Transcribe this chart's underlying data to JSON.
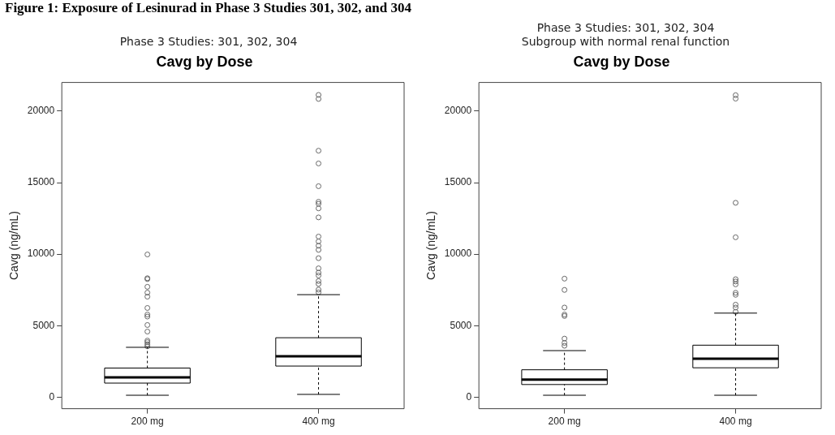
{
  "chart_data": [
    {
      "type": "box",
      "title": "Cavg by Dose",
      "subtitle": "Phase 3 Studies: 301, 302, 304",
      "ylabel": "Cavg (ng/mL)",
      "annotations": [
        "Figure 1: Exposure of Lesinurad in Phase 3 Studies 301, 302, and 304"
      ],
      "categories": [
        "200 mg",
        "400 mg"
      ],
      "color": "#000000",
      "marker": "circle",
      "grid": false,
      "legend": false,
      "ylim": [
        -800,
        22000
      ],
      "yticks": [
        0,
        5000,
        10000,
        15000,
        20000
      ],
      "boxes": [
        {
          "low": 140,
          "q1": 990,
          "median": 1390,
          "q3": 2040,
          "high": 3490,
          "outliers": [
            3560,
            3700,
            3850,
            3960,
            4590,
            5050,
            5640,
            5780,
            6240,
            7030,
            7310,
            7720,
            8260,
            8320,
            9980
          ]
        },
        {
          "low": 200,
          "q1": 2180,
          "median": 2870,
          "q3": 4160,
          "high": 7170,
          "outliers": [
            7330,
            7520,
            7920,
            8120,
            8510,
            8710,
            9010,
            9720,
            10300,
            10590,
            10890,
            11230,
            12570,
            13200,
            13520,
            13660,
            14750,
            16340,
            17230,
            20850,
            21130
          ]
        }
      ]
    },
    {
      "type": "box",
      "title": "Cavg by Dose",
      "subtitle": "Phase 3 Studies: 301, 302, 304\nSubgroup with normal renal function",
      "ylabel": "Cavg (ng/mL)",
      "categories": [
        "200 mg",
        "400 mg"
      ],
      "color": "#000000",
      "marker": "circle",
      "grid": false,
      "legend": false,
      "ylim": [
        -800,
        22000
      ],
      "yticks": [
        0,
        5000,
        10000,
        15000,
        20000
      ],
      "boxes": [
        {
          "low": 140,
          "q1": 890,
          "median": 1230,
          "q3": 1920,
          "high": 3260,
          "outliers": [
            3600,
            3800,
            4100,
            5680,
            5780,
            6270,
            7500,
            8290
          ]
        },
        {
          "low": 140,
          "q1": 2060,
          "median": 2690,
          "q3": 3640,
          "high": 5880,
          "outliers": [
            5970,
            6270,
            6470,
            7160,
            7300,
            7890,
            8090,
            8250,
            11180,
            13590,
            20870,
            21110
          ]
        }
      ]
    }
  ]
}
